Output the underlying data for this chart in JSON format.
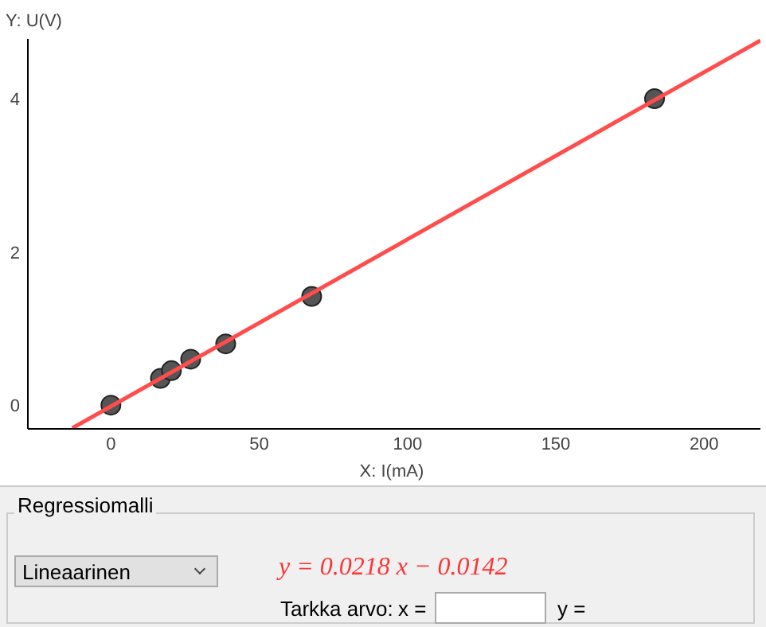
{
  "chart_data": {
    "type": "scatter",
    "title": "Y:  U(V)",
    "xlabel": "X:  I(mA)",
    "xlim": [
      -28,
      219
    ],
    "ylim": [
      -0.31,
      4.78
    ],
    "xticks": [
      0,
      50,
      100,
      150,
      200
    ],
    "yticks": [
      0,
      2,
      4
    ],
    "series": [
      {
        "color": "#555555",
        "marker": "circle",
        "x": [
          0,
          16.7,
          20.4,
          26.9,
          38.7,
          67.7,
          183.3
        ],
        "values": [
          0,
          0.35,
          0.45,
          0.6,
          0.8,
          1.42,
          4.0
        ]
      },
      {
        "type": "line",
        "marker": "none",
        "color": "#ff4d4d",
        "x": [
          -13,
          219
        ],
        "values": [
          -0.3,
          4.76
        ]
      }
    ],
    "annotations": [
      "Regressiomalli",
      "Lineaarinen",
      "y = 0.0218 x − 0.0142",
      "Tarkka arvo:",
      "x =",
      "y ="
    ]
  }
}
